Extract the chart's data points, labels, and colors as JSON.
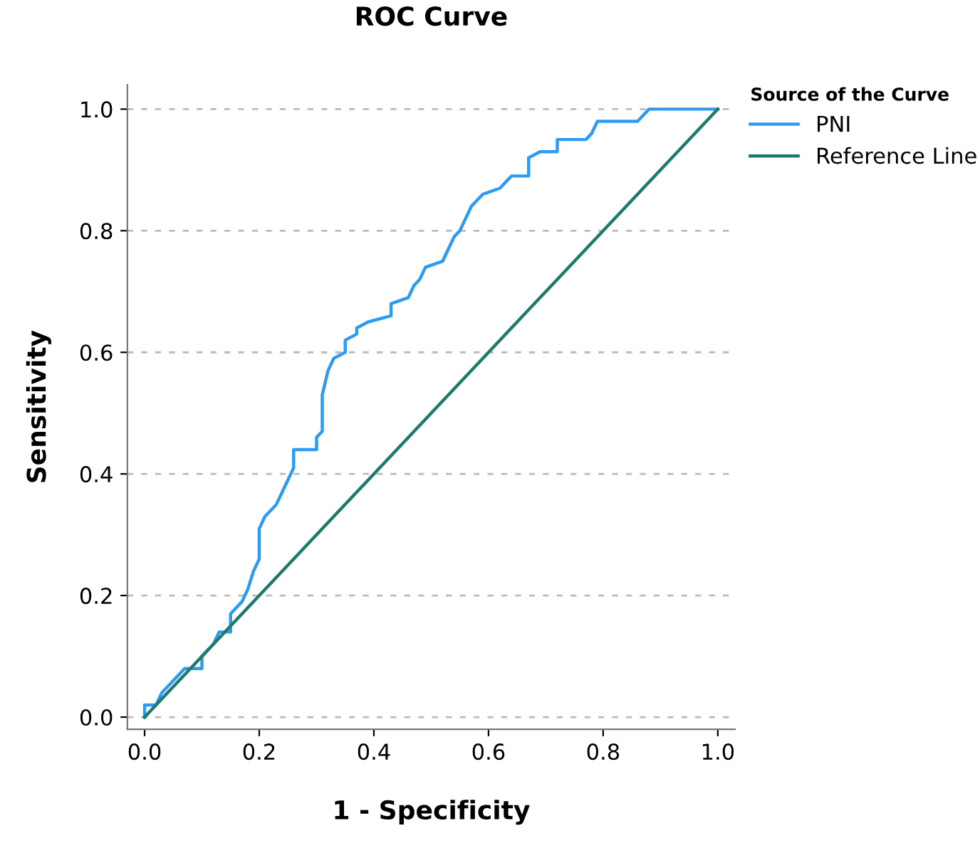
{
  "chart_data": {
    "type": "line",
    "title": "ROC Curve",
    "xlabel": "1 - Specificity",
    "ylabel": "Sensitivity",
    "legend_title": "Source of the Curve",
    "legend": "top right",
    "grid": "y",
    "marker": "none",
    "line_style": "solid",
    "xlim": [
      -0.03,
      1.03
    ],
    "ylim": [
      -0.02,
      1.04
    ],
    "xticks": [
      {
        "value": 0,
        "label": "0.0"
      },
      {
        "value": 0.2,
        "label": "0.2"
      },
      {
        "value": 0.4,
        "label": "0.4"
      },
      {
        "value": 0.6,
        "label": "0.6"
      },
      {
        "value": 0.8,
        "label": "0.8"
      },
      {
        "value": 1,
        "label": "1.0"
      }
    ],
    "yticks": [
      {
        "value": 0,
        "label": "0.0"
      },
      {
        "value": 0.2,
        "label": "0.2"
      },
      {
        "value": 0.4,
        "label": "0.4"
      },
      {
        "value": 0.6,
        "label": "0.6"
      },
      {
        "value": 0.8,
        "label": "0.8"
      },
      {
        "value": 1,
        "label": "1.0"
      }
    ],
    "series": [
      {
        "name": "PNI",
        "color": "#2e9bf0",
        "x": [
          0,
          0,
          0.02,
          0.03,
          0.05,
          0.07,
          0.1,
          0.1,
          0.12,
          0.13,
          0.15,
          0.15,
          0.17,
          0.18,
          0.19,
          0.2,
          0.2,
          0.21,
          0.23,
          0.24,
          0.25,
          0.26,
          0.26,
          0.3,
          0.3,
          0.31,
          0.31,
          0.32,
          0.33,
          0.35,
          0.35,
          0.37,
          0.37,
          0.39,
          0.43,
          0.43,
          0.46,
          0.47,
          0.48,
          0.49,
          0.52,
          0.53,
          0.54,
          0.55,
          0.57,
          0.58,
          0.59,
          0.62,
          0.64,
          0.67,
          0.67,
          0.69,
          0.72,
          0.72,
          0.77,
          0.78,
          0.79,
          0.86,
          0.87,
          0.88,
          1
        ],
        "values": [
          0,
          0.02,
          0.02,
          0.04,
          0.06,
          0.08,
          0.08,
          0.1,
          0.12,
          0.14,
          0.14,
          0.17,
          0.19,
          0.21,
          0.24,
          0.26,
          0.31,
          0.33,
          0.35,
          0.37,
          0.39,
          0.41,
          0.44,
          0.44,
          0.46,
          0.47,
          0.53,
          0.57,
          0.59,
          0.6,
          0.62,
          0.63,
          0.64,
          0.65,
          0.66,
          0.68,
          0.69,
          0.71,
          0.72,
          0.74,
          0.75,
          0.77,
          0.79,
          0.8,
          0.84,
          0.85,
          0.86,
          0.87,
          0.89,
          0.89,
          0.92,
          0.93,
          0.93,
          0.95,
          0.95,
          0.96,
          0.98,
          0.98,
          0.99,
          1,
          1
        ]
      },
      {
        "name": "Reference Line",
        "color": "#1f7a6e",
        "x": [
          0,
          1
        ],
        "values": [
          0,
          1
        ]
      }
    ]
  }
}
